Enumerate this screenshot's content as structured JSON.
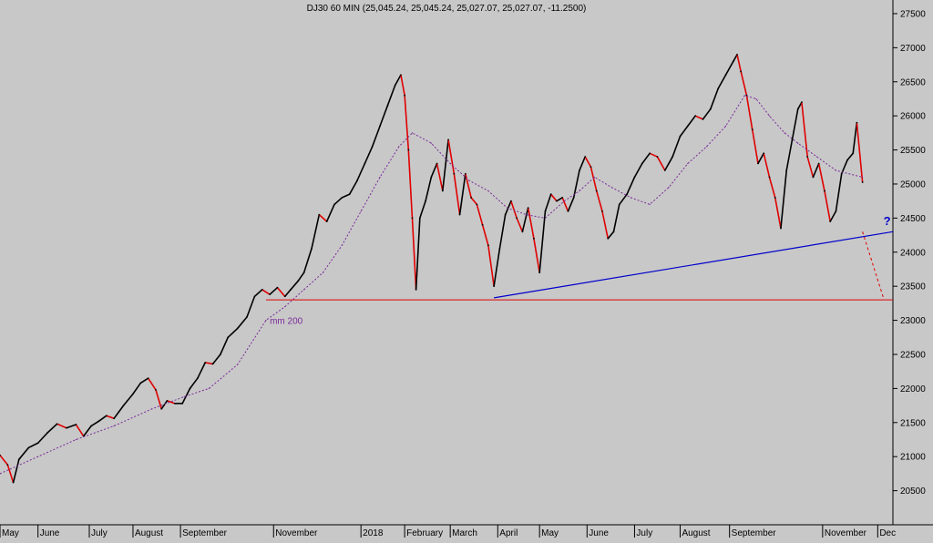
{
  "chart_data": {
    "type": "line",
    "title": "DJ30 60 MIN (25,045.24, 25,045.24, 25,027.07, 25,027.07, -11.2500)",
    "y_axis": {
      "side": "right",
      "ticks": [
        20500,
        21000,
        21500,
        22000,
        22500,
        23000,
        23500,
        24000,
        24500,
        25000,
        25500,
        26000,
        26500,
        27000,
        27500
      ],
      "range": [
        20000,
        27700
      ]
    },
    "x_axis": {
      "ticks": [
        {
          "label": "May",
          "t": 0.0
        },
        {
          "label": "June",
          "t": 2.0
        },
        {
          "label": "July",
          "t": 4.7
        },
        {
          "label": "August",
          "t": 7.0
        },
        {
          "label": "September",
          "t": 9.5
        },
        {
          "label": "November",
          "t": 14.4
        },
        {
          "label": "2018",
          "t": 19.0
        },
        {
          "label": "February",
          "t": 21.3
        },
        {
          "label": "March",
          "t": 23.7
        },
        {
          "label": "April",
          "t": 26.2
        },
        {
          "label": "May",
          "t": 28.4
        },
        {
          "label": "June",
          "t": 30.9
        },
        {
          "label": "July",
          "t": 33.4
        },
        {
          "label": "August",
          "t": 35.8
        },
        {
          "label": "September",
          "t": 38.4
        },
        {
          "label": "November",
          "t": 43.3
        },
        {
          "label": "Dec",
          "t": 46.2
        }
      ],
      "range": [
        0,
        47
      ]
    },
    "series": [
      {
        "name": "",
        "style": "price",
        "color": "#000000",
        "down_color": "#e00000",
        "points": [
          [
            0.0,
            21020
          ],
          [
            0.4,
            20880
          ],
          [
            0.7,
            20620
          ],
          [
            1.0,
            20960
          ],
          [
            1.5,
            21130
          ],
          [
            2.0,
            21200
          ],
          [
            2.5,
            21350
          ],
          [
            3.0,
            21480
          ],
          [
            3.5,
            21420
          ],
          [
            4.0,
            21470
          ],
          [
            4.4,
            21300
          ],
          [
            4.8,
            21450
          ],
          [
            5.2,
            21520
          ],
          [
            5.6,
            21600
          ],
          [
            6.0,
            21560
          ],
          [
            6.5,
            21750
          ],
          [
            7.0,
            21920
          ],
          [
            7.4,
            22080
          ],
          [
            7.8,
            22150
          ],
          [
            8.2,
            21980
          ],
          [
            8.5,
            21700
          ],
          [
            8.8,
            21820
          ],
          [
            9.2,
            21780
          ],
          [
            9.6,
            21780
          ],
          [
            10.0,
            22000
          ],
          [
            10.4,
            22150
          ],
          [
            10.8,
            22380
          ],
          [
            11.2,
            22360
          ],
          [
            11.6,
            22500
          ],
          [
            12.0,
            22750
          ],
          [
            12.5,
            22880
          ],
          [
            13.0,
            23050
          ],
          [
            13.4,
            23350
          ],
          [
            13.8,
            23450
          ],
          [
            14.2,
            23380
          ],
          [
            14.6,
            23480
          ],
          [
            15.0,
            23350
          ],
          [
            15.3,
            23450
          ],
          [
            15.7,
            23580
          ],
          [
            16.0,
            23700
          ],
          [
            16.4,
            24050
          ],
          [
            16.8,
            24550
          ],
          [
            17.2,
            24450
          ],
          [
            17.6,
            24700
          ],
          [
            18.0,
            24800
          ],
          [
            18.4,
            24850
          ],
          [
            18.8,
            25050
          ],
          [
            19.2,
            25300
          ],
          [
            19.6,
            25550
          ],
          [
            20.0,
            25850
          ],
          [
            20.4,
            26150
          ],
          [
            20.8,
            26450
          ],
          [
            21.1,
            26600
          ],
          [
            21.3,
            26300
          ],
          [
            21.5,
            25500
          ],
          [
            21.7,
            24500
          ],
          [
            21.9,
            23450
          ],
          [
            22.1,
            24500
          ],
          [
            22.4,
            24750
          ],
          [
            22.7,
            25100
          ],
          [
            23.0,
            25300
          ],
          [
            23.3,
            24900
          ],
          [
            23.6,
            25650
          ],
          [
            23.9,
            25150
          ],
          [
            24.2,
            24550
          ],
          [
            24.5,
            25150
          ],
          [
            24.8,
            24800
          ],
          [
            25.1,
            24700
          ],
          [
            25.4,
            24400
          ],
          [
            25.7,
            24100
          ],
          [
            26.0,
            23500
          ],
          [
            26.3,
            24050
          ],
          [
            26.6,
            24550
          ],
          [
            26.9,
            24750
          ],
          [
            27.2,
            24500
          ],
          [
            27.5,
            24300
          ],
          [
            27.8,
            24650
          ],
          [
            28.1,
            24200
          ],
          [
            28.4,
            23700
          ],
          [
            28.7,
            24600
          ],
          [
            29.0,
            24850
          ],
          [
            29.3,
            24750
          ],
          [
            29.6,
            24800
          ],
          [
            29.9,
            24600
          ],
          [
            30.2,
            24800
          ],
          [
            30.5,
            25200
          ],
          [
            30.8,
            25400
          ],
          [
            31.1,
            25250
          ],
          [
            31.4,
            24900
          ],
          [
            31.7,
            24600
          ],
          [
            32.0,
            24200
          ],
          [
            32.3,
            24300
          ],
          [
            32.6,
            24700
          ],
          [
            33.0,
            24850
          ],
          [
            33.4,
            25100
          ],
          [
            33.8,
            25300
          ],
          [
            34.2,
            25450
          ],
          [
            34.6,
            25400
          ],
          [
            35.0,
            25200
          ],
          [
            35.4,
            25400
          ],
          [
            35.8,
            25700
          ],
          [
            36.2,
            25850
          ],
          [
            36.6,
            26000
          ],
          [
            37.0,
            25950
          ],
          [
            37.4,
            26100
          ],
          [
            37.8,
            26400
          ],
          [
            38.2,
            26600
          ],
          [
            38.6,
            26800
          ],
          [
            38.8,
            26900
          ],
          [
            39.0,
            26650
          ],
          [
            39.3,
            26300
          ],
          [
            39.6,
            25800
          ],
          [
            39.9,
            25300
          ],
          [
            40.2,
            25450
          ],
          [
            40.5,
            25100
          ],
          [
            40.8,
            24800
          ],
          [
            41.1,
            24350
          ],
          [
            41.4,
            25200
          ],
          [
            41.7,
            25650
          ],
          [
            42.0,
            26100
          ],
          [
            42.2,
            26200
          ],
          [
            42.5,
            25400
          ],
          [
            42.8,
            25100
          ],
          [
            43.1,
            25300
          ],
          [
            43.4,
            24900
          ],
          [
            43.7,
            24450
          ],
          [
            44.0,
            24600
          ],
          [
            44.3,
            25150
          ],
          [
            44.6,
            25350
          ],
          [
            44.9,
            25450
          ],
          [
            45.1,
            25900
          ],
          [
            45.4,
            25027
          ]
        ]
      },
      {
        "name": "mm 200",
        "style": "dotted",
        "color": "#7a2a9a",
        "points": [
          [
            0.0,
            20750
          ],
          [
            2.0,
            21000
          ],
          [
            4.0,
            21250
          ],
          [
            6.0,
            21450
          ],
          [
            8.0,
            21700
          ],
          [
            9.7,
            21880
          ],
          [
            11.0,
            22000
          ],
          [
            12.5,
            22350
          ],
          [
            14.0,
            23000
          ],
          [
            15.0,
            23200
          ],
          [
            16.0,
            23450
          ],
          [
            17.0,
            23700
          ],
          [
            18.0,
            24100
          ],
          [
            19.0,
            24600
          ],
          [
            20.0,
            25100
          ],
          [
            21.0,
            25550
          ],
          [
            21.7,
            25750
          ],
          [
            22.7,
            25600
          ],
          [
            23.7,
            25300
          ],
          [
            24.7,
            25050
          ],
          [
            25.7,
            24900
          ],
          [
            26.7,
            24650
          ],
          [
            27.7,
            24550
          ],
          [
            28.7,
            24500
          ],
          [
            29.7,
            24750
          ],
          [
            30.5,
            24900
          ],
          [
            31.3,
            25100
          ],
          [
            32.2,
            24950
          ],
          [
            33.2,
            24800
          ],
          [
            34.2,
            24700
          ],
          [
            35.2,
            24950
          ],
          [
            36.2,
            25300
          ],
          [
            37.2,
            25550
          ],
          [
            38.2,
            25850
          ],
          [
            39.2,
            26300
          ],
          [
            39.8,
            26250
          ],
          [
            40.5,
            26000
          ],
          [
            41.3,
            25750
          ],
          [
            42.0,
            25600
          ],
          [
            43.0,
            25400
          ],
          [
            44.0,
            25200
          ],
          [
            45.4,
            25100
          ]
        ]
      }
    ],
    "annotations": [
      {
        "type": "horizontal-line",
        "y": 23300,
        "from_t": 14.0,
        "to_t": 47.0,
        "color": "#e00000"
      },
      {
        "type": "trend-line",
        "from": [
          26.0,
          23330
        ],
        "to": [
          47.0,
          24300
        ],
        "color": "#0000cc"
      },
      {
        "type": "dashed-line",
        "from": [
          45.4,
          24300
        ],
        "to": [
          46.5,
          23330
        ],
        "color": "#e00000"
      },
      {
        "type": "label",
        "text": "mm 200",
        "at": [
          14.2,
          22950
        ],
        "color": "#7a2a9a"
      },
      {
        "type": "label",
        "text": "?",
        "at": [
          46.5,
          24400
        ],
        "color": "#0000cc"
      }
    ],
    "grid": false,
    "legend": "none"
  }
}
